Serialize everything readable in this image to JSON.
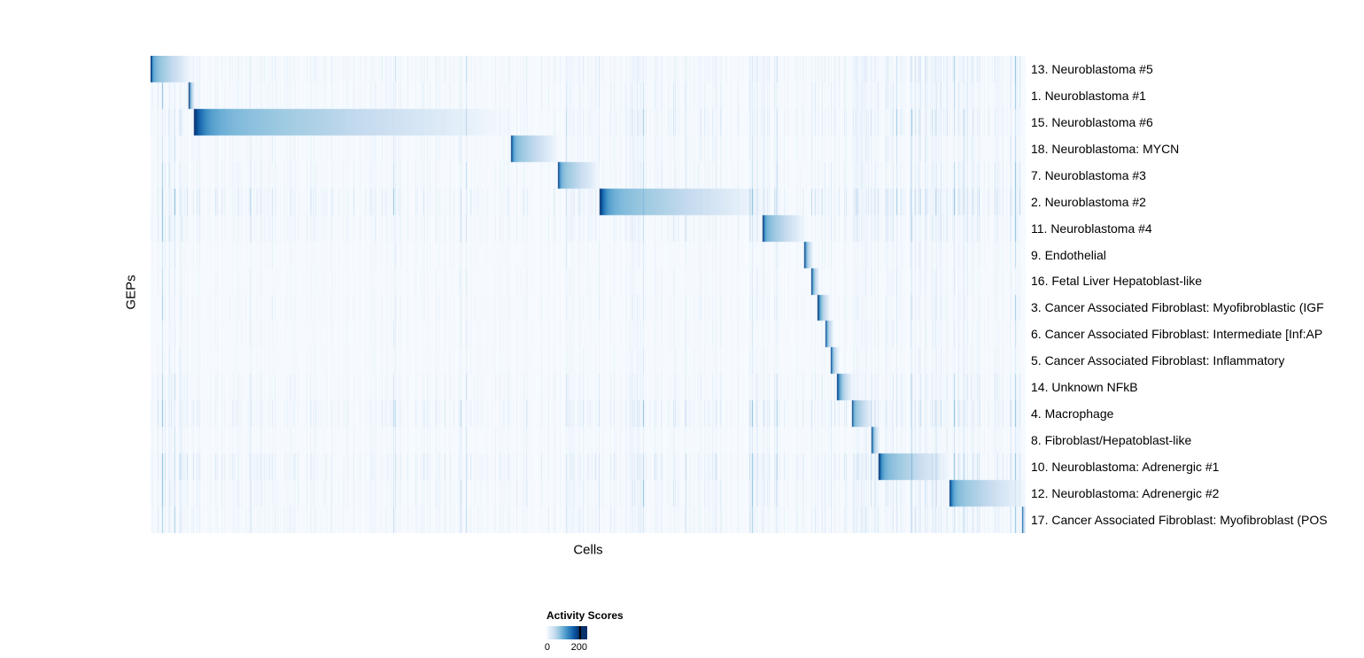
{
  "chart_data": {
    "type": "heatmap",
    "title": "",
    "xlabel": "Cells",
    "ylabel": "GEPs",
    "legend": {
      "title": "Activity Scores",
      "min_label": "0",
      "max_label": "200",
      "min": 0,
      "max": 200
    },
    "colormap": [
      "#f7fbff",
      "#deebf7",
      "#c6dbef",
      "#9ecae1",
      "#6baed6",
      "#4292c6",
      "#2171b5",
      "#08519c",
      "#08306b"
    ],
    "value_range": [
      0,
      200
    ],
    "rows": [
      {
        "label": "13. Neuroblastoma #5",
        "block_start": 0.0,
        "block_end": 0.047,
        "peak": 200,
        "noise": 0.9
      },
      {
        "label": "1. Neuroblastoma #1",
        "block_start": 0.0435,
        "block_end": 0.051,
        "peak": 200,
        "noise": 0.8
      },
      {
        "label": "15. Neuroblastoma #6",
        "block_start": 0.05,
        "block_end": 0.411,
        "peak": 200,
        "noise": 1.0
      },
      {
        "label": "18. Neuroblastoma: MYCN",
        "block_start": 0.412,
        "block_end": 0.467,
        "peak": 190,
        "noise": 0.7
      },
      {
        "label": "7. Neuroblastoma #3",
        "block_start": 0.466,
        "block_end": 0.513,
        "peak": 190,
        "noise": 0.8
      },
      {
        "label": "2. Neuroblastoma #2",
        "block_start": 0.513,
        "block_end": 0.701,
        "peak": 200,
        "noise": 1.4
      },
      {
        "label": "11. Neuroblastoma #4",
        "block_start": 0.699,
        "block_end": 0.748,
        "peak": 200,
        "noise": 0.9
      },
      {
        "label": "9. Endothelial",
        "block_start": 0.747,
        "block_end": 0.757,
        "peak": 190,
        "noise": 0.5
      },
      {
        "label": "16. Fetal Liver Hepatoblast-like",
        "block_start": 0.755,
        "block_end": 0.764,
        "peak": 190,
        "noise": 0.5
      },
      {
        "label": "3. Cancer Associated Fibroblast: Myofibroblastic (IGF",
        "block_start": 0.762,
        "block_end": 0.776,
        "peak": 200,
        "noise": 0.6
      },
      {
        "label": "6. Cancer Associated Fibroblast: Intermediate [Inf:AP",
        "block_start": 0.771,
        "block_end": 0.78,
        "peak": 180,
        "noise": 0.5
      },
      {
        "label": "5. Cancer Associated Fibroblast: Inflammatory",
        "block_start": 0.777,
        "block_end": 0.786,
        "peak": 180,
        "noise": 0.5
      },
      {
        "label": "14. Unknown NFkB",
        "block_start": 0.784,
        "block_end": 0.803,
        "peak": 190,
        "noise": 0.8
      },
      {
        "label": "4. Macrophage",
        "block_start": 0.802,
        "block_end": 0.826,
        "peak": 190,
        "noise": 1.2
      },
      {
        "label": "8. Fibroblast/Hepatoblast-like",
        "block_start": 0.824,
        "block_end": 0.833,
        "peak": 180,
        "noise": 0.6
      },
      {
        "label": "10. Neuroblastoma: Adrenergic #1",
        "block_start": 0.832,
        "block_end": 0.914,
        "peak": 200,
        "noise": 1.3
      },
      {
        "label": "12. Neuroblastoma: Adrenergic #2",
        "block_start": 0.913,
        "block_end": 1.0,
        "peak": 190,
        "noise": 1.0
      },
      {
        "label": "17. Cancer Associated Fibroblast: Myofibroblast (POS",
        "block_start": 0.996,
        "block_end": 1.0,
        "peak": 160,
        "noise": 0.9
      }
    ]
  }
}
